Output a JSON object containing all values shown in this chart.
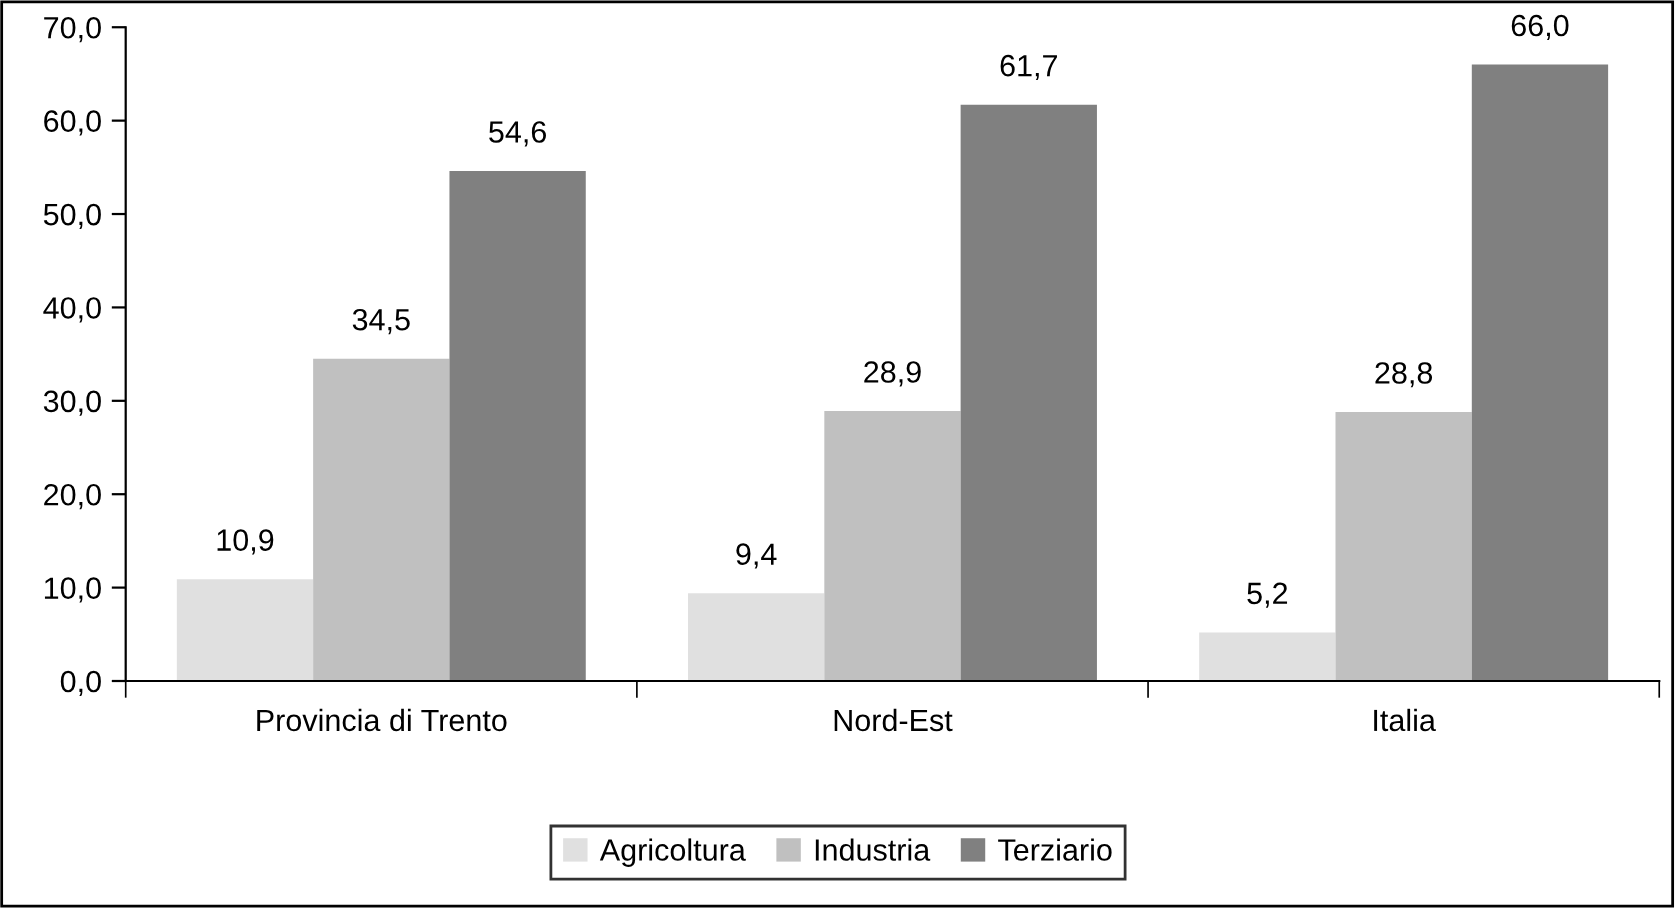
{
  "chart_data": {
    "type": "bar",
    "categories": [
      "Provincia di Trento",
      "Nord-Est",
      "Italia"
    ],
    "series": [
      {
        "name": "Agricoltura",
        "color": "#e0e0e0",
        "values": [
          10.9,
          9.4,
          5.2
        ],
        "value_labels": [
          "10,9",
          "9,4",
          "5,2"
        ]
      },
      {
        "name": "Industria",
        "color": "#c0c0c0",
        "values": [
          34.5,
          28.9,
          28.8
        ],
        "value_labels": [
          "34,5",
          "28,9",
          "28,8"
        ]
      },
      {
        "name": "Terziario",
        "color": "#808080",
        "values": [
          54.6,
          61.7,
          66.0
        ],
        "value_labels": [
          "54,6",
          "61,7",
          "66,0"
        ]
      }
    ],
    "ylim": [
      0,
      70
    ],
    "yticks": [
      {
        "value": 0,
        "label": "0,0"
      },
      {
        "value": 10,
        "label": "10,0"
      },
      {
        "value": 20,
        "label": "20,0"
      },
      {
        "value": 30,
        "label": "30,0"
      },
      {
        "value": 40,
        "label": "40,0"
      },
      {
        "value": 50,
        "label": "50,0"
      },
      {
        "value": 60,
        "label": "60,0"
      },
      {
        "value": 70,
        "label": "70,0"
      }
    ],
    "grid": false,
    "legend": "bottom"
  }
}
